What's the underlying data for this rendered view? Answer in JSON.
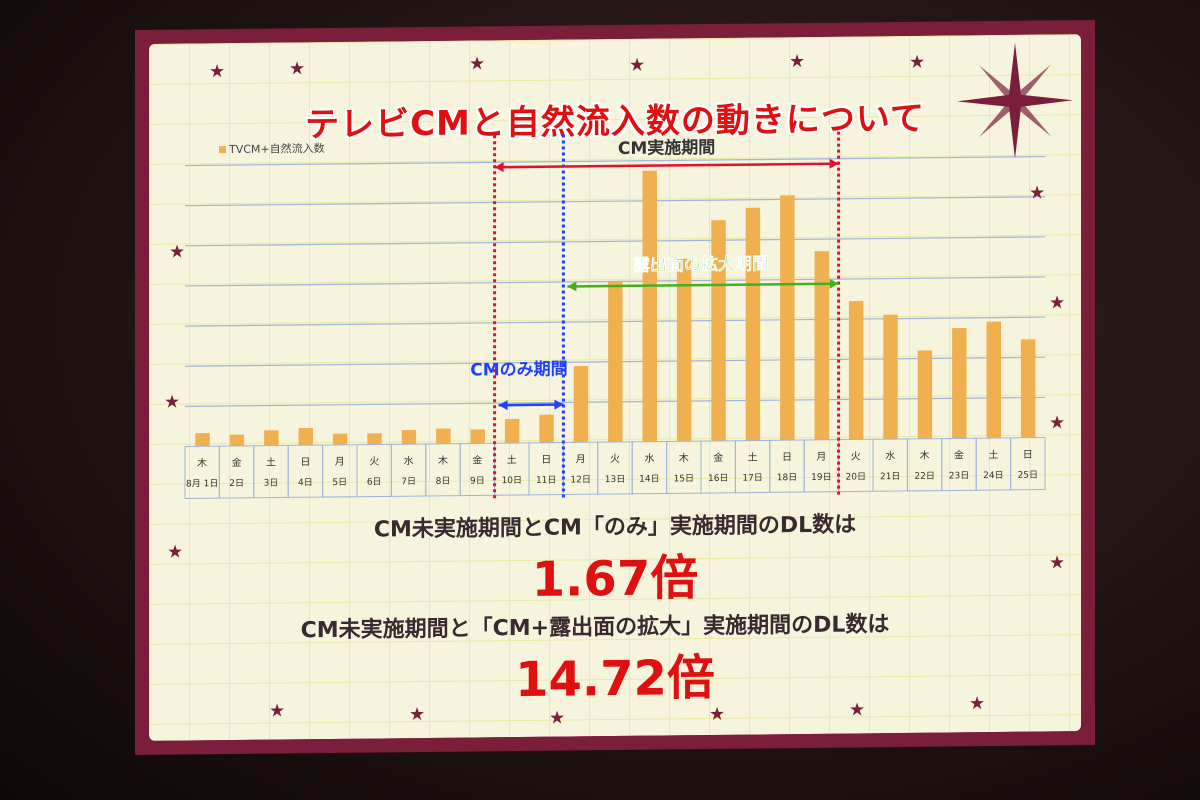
{
  "slide": {
    "title": "テレビCMと自然流入数の動きについて",
    "statement_1": "CM未実施期間とCM「のみ」実施期間のDL数は",
    "ratio_1": "1.67倍",
    "statement_2": "CM未実施期間と「CM+露出面の拡大」実施期間のDL数は",
    "ratio_2": "14.72倍"
  },
  "chart_data": {
    "type": "bar",
    "legend": [
      "TVCM+自然流入数"
    ],
    "legend_position": "top-left",
    "grid": true,
    "bar_color": "#f0b050",
    "categories": [
      "8月 1日",
      "2日",
      "3日",
      "4日",
      "5日",
      "6日",
      "7日",
      "8日",
      "9日",
      "10日",
      "11日",
      "12日",
      "13日",
      "14日",
      "15日",
      "16日",
      "17日",
      "18日",
      "19日",
      "20日",
      "21日",
      "22日",
      "23日",
      "24日",
      "25日"
    ],
    "weekdays": [
      "木",
      "金",
      "土",
      "日",
      "月",
      "火",
      "水",
      "木",
      "金",
      "土",
      "日",
      "月",
      "火",
      "水",
      "木",
      "金",
      "土",
      "日",
      "月",
      "火",
      "水",
      "木",
      "金",
      "土",
      "日"
    ],
    "series": [
      {
        "name": "TVCM+自然流入数",
        "values": [
          0.33,
          0.28,
          0.38,
          0.43,
          0.28,
          0.28,
          0.35,
          0.38,
          0.35,
          0.6,
          0.7,
          1.9,
          4.0,
          6.75,
          4.55,
          5.5,
          5.8,
          6.1,
          4.7,
          3.45,
          3.1,
          2.2,
          2.75,
          2.9,
          2.45
        ]
      }
    ],
    "ylim": [
      0,
      7.3
    ],
    "annotations": [
      {
        "label": "CM実施期間",
        "from": "10日",
        "to": "19日",
        "color": "#e01030"
      },
      {
        "label": "露出面の拡大期間",
        "from": "12日",
        "to": "19日",
        "color": "#44b020"
      },
      {
        "label": "CMのみ期間",
        "from": "10日",
        "to": "11日",
        "color": "#2040ff"
      }
    ]
  }
}
